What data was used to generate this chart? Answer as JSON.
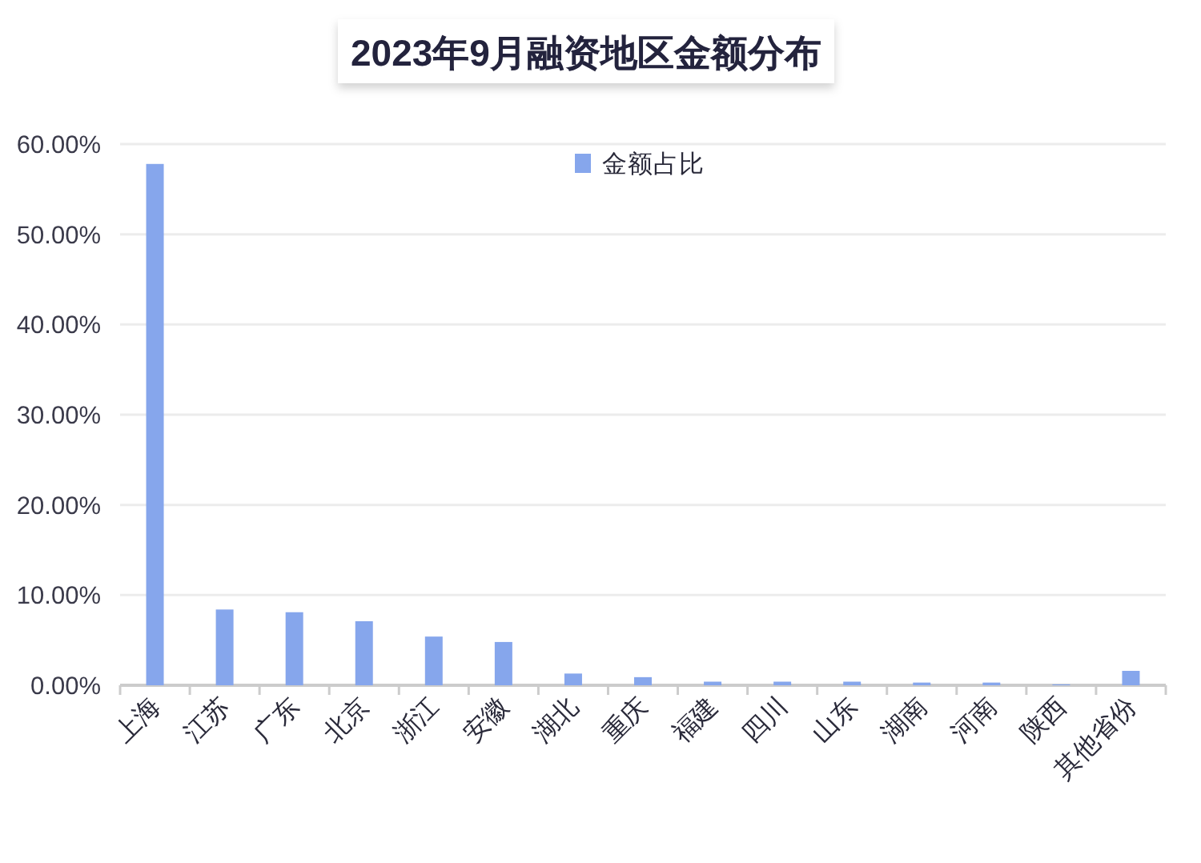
{
  "chart_data": {
    "type": "bar",
    "title": "2023年9月融资地区金额分布",
    "categories": [
      "上海",
      "江苏",
      "广东",
      "北京",
      "浙江",
      "安徽",
      "湖北",
      "重庆",
      "福建",
      "四川",
      "山东",
      "湖南",
      "河南",
      "陕西",
      "其他省份"
    ],
    "series": [
      {
        "name": "金额占比",
        "color": "#86a6ec",
        "values": [
          57.8,
          8.4,
          8.1,
          7.1,
          5.4,
          4.8,
          1.3,
          0.9,
          0.4,
          0.4,
          0.4,
          0.3,
          0.3,
          0.1,
          1.6
        ]
      }
    ],
    "ylim": [
      0,
      60
    ],
    "yticks": [
      {
        "value": 0,
        "label": "0.00%"
      },
      {
        "value": 10,
        "label": "10.00%"
      },
      {
        "value": 20,
        "label": "20.00%"
      },
      {
        "value": 30,
        "label": "30.00%"
      },
      {
        "value": 40,
        "label": "40.00%"
      },
      {
        "value": 50,
        "label": "50.00%"
      },
      {
        "value": 60,
        "label": "60.00%"
      }
    ],
    "grid": "y",
    "legend": "top"
  }
}
